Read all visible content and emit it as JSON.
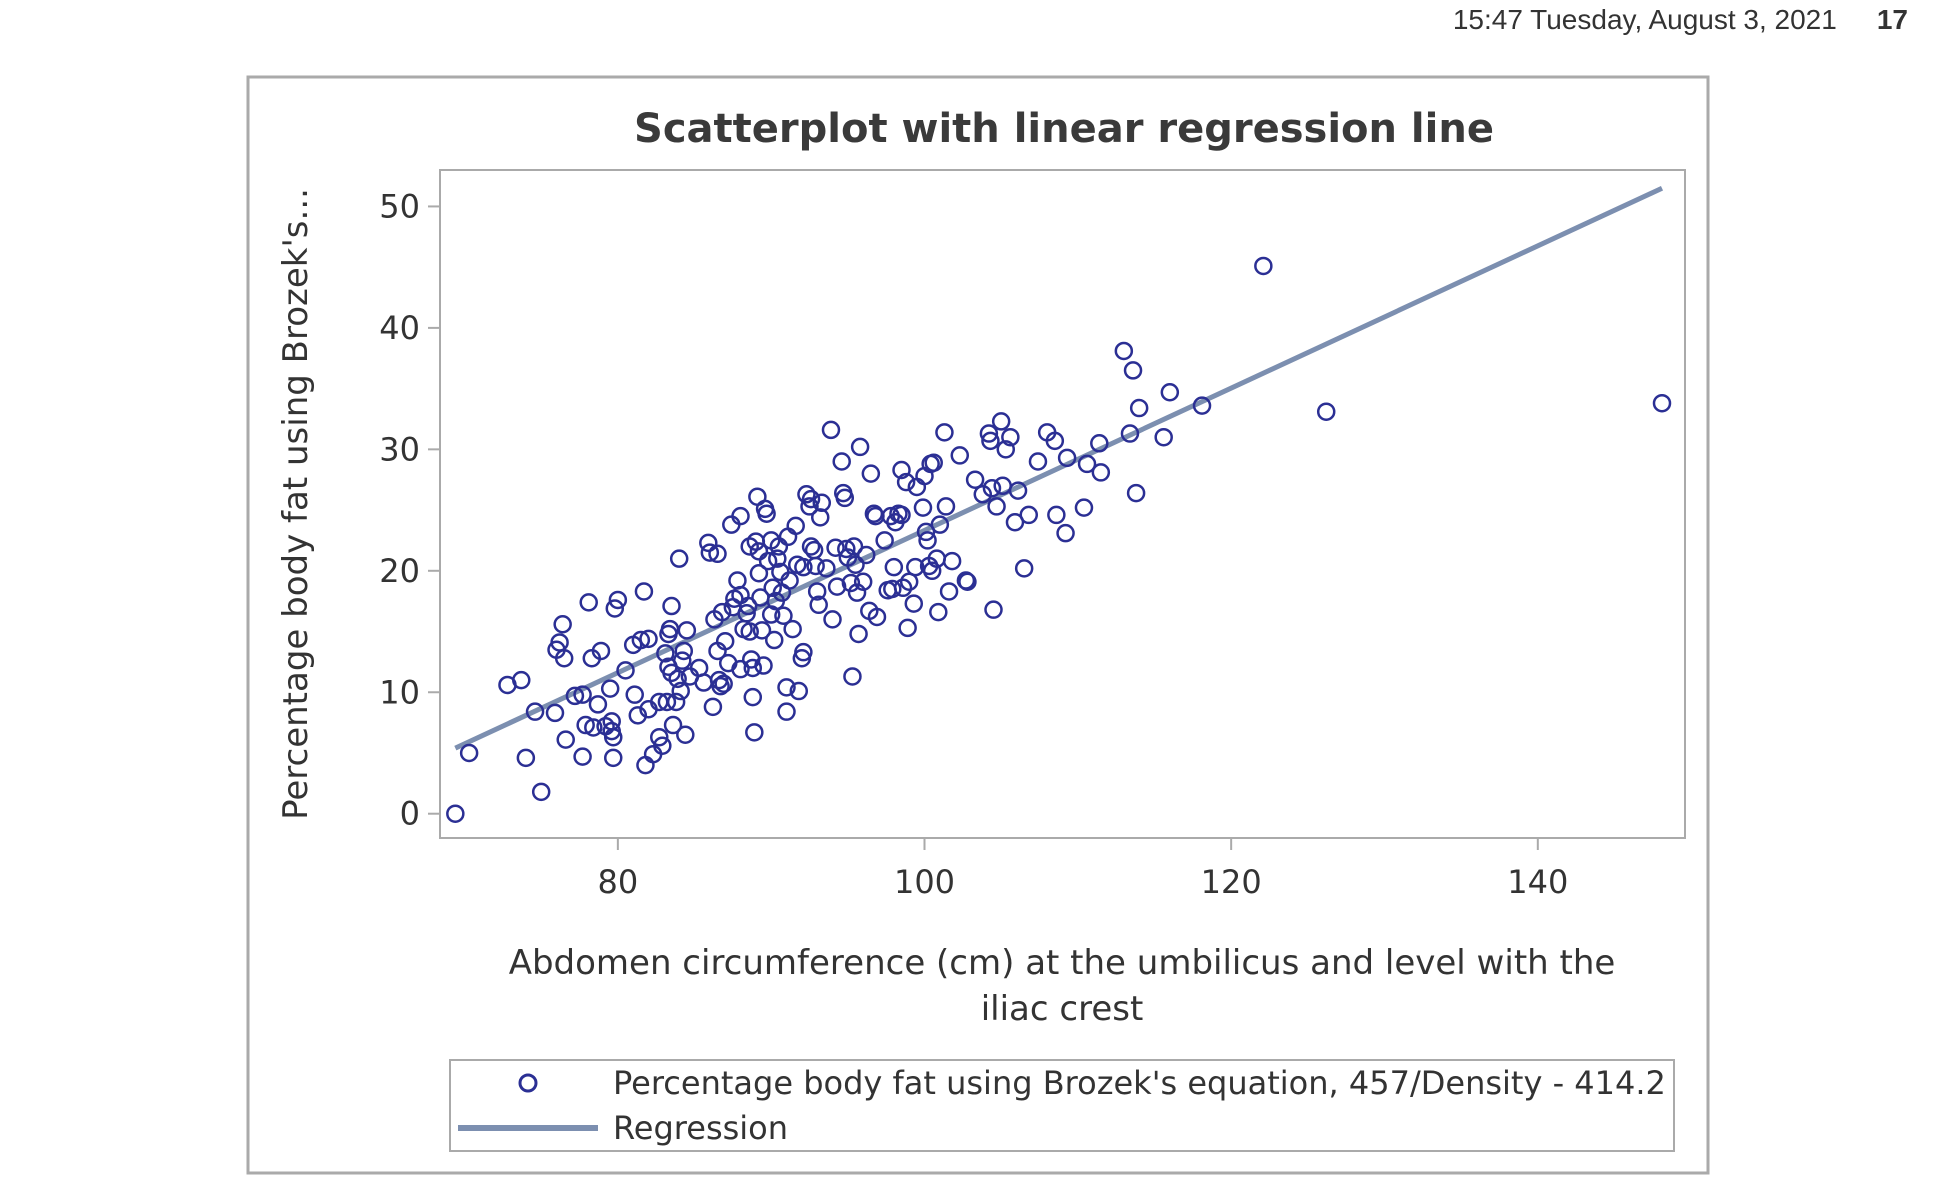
{
  "header": {
    "datetime": "15:47 Tuesday, August 3, 2021",
    "page_number": "17"
  },
  "colors": {
    "marker": "#2b2f94",
    "regression": "#7c8fb0",
    "frame": "#aaaaaa",
    "text": "#333333"
  },
  "chart_data": {
    "type": "scatter",
    "title": "Scatterplot with linear regression line",
    "xlabel_lines": [
      "Abdomen circumference (cm) at the umbilicus and level with the",
      "iliac crest"
    ],
    "ylabel": "Percentage body fat using Brozek's...",
    "xlim": [
      68.4,
      149.6
    ],
    "ylim": [
      -2,
      53
    ],
    "xticks": [
      80,
      100,
      120,
      140
    ],
    "yticks": [
      0,
      10,
      20,
      30,
      40,
      50
    ],
    "grid": false,
    "legend_position": "bottom",
    "legend": [
      {
        "label": "Percentage body fat using Brozek's equation, 457/Density - 414.2",
        "kind": "marker"
      },
      {
        "label": "Regression",
        "kind": "line"
      }
    ],
    "regression": {
      "x": [
        69.4,
        148.1
      ],
      "y": [
        5.4,
        51.5
      ]
    },
    "series": [
      {
        "name": "Percentage body fat using Brozek's equation, 457/Density - 414.2",
        "points": [
          [
            69.4,
            0.0
          ],
          [
            70.3,
            5.0
          ],
          [
            72.8,
            10.6
          ],
          [
            73.7,
            11.0
          ],
          [
            74.0,
            4.6
          ],
          [
            74.6,
            8.4
          ],
          [
            75.0,
            1.8
          ],
          [
            75.9,
            8.3
          ],
          [
            76.0,
            13.5
          ],
          [
            76.2,
            14.1
          ],
          [
            76.4,
            15.6
          ],
          [
            76.5,
            12.8
          ],
          [
            76.6,
            6.1
          ],
          [
            77.2,
            9.7
          ],
          [
            77.7,
            9.8
          ],
          [
            77.7,
            4.7
          ],
          [
            77.9,
            7.3
          ],
          [
            78.1,
            17.4
          ],
          [
            78.3,
            12.8
          ],
          [
            78.4,
            7.1
          ],
          [
            78.7,
            9.0
          ],
          [
            78.9,
            13.4
          ],
          [
            79.2,
            7.2
          ],
          [
            79.5,
            10.3
          ],
          [
            79.6,
            7.6
          ],
          [
            79.6,
            6.8
          ],
          [
            79.7,
            6.3
          ],
          [
            79.7,
            4.6
          ],
          [
            79.8,
            16.9
          ],
          [
            80.0,
            17.6
          ],
          [
            80.5,
            11.8
          ],
          [
            81.0,
            13.9
          ],
          [
            81.1,
            9.8
          ],
          [
            81.3,
            8.1
          ],
          [
            81.5,
            14.3
          ],
          [
            81.7,
            18.3
          ],
          [
            81.8,
            4.0
          ],
          [
            82.0,
            8.6
          ],
          [
            82.0,
            14.4
          ],
          [
            82.3,
            4.9
          ],
          [
            82.7,
            9.2
          ],
          [
            82.7,
            6.3
          ],
          [
            82.9,
            5.6
          ],
          [
            83.1,
            13.2
          ],
          [
            83.2,
            9.2
          ],
          [
            83.3,
            14.8
          ],
          [
            83.3,
            12.1
          ],
          [
            83.4,
            15.2
          ],
          [
            83.5,
            17.1
          ],
          [
            83.5,
            11.6
          ],
          [
            83.6,
            7.3
          ],
          [
            83.8,
            9.2
          ],
          [
            83.9,
            11.1
          ],
          [
            84.0,
            21.0
          ],
          [
            84.1,
            10.1
          ],
          [
            84.2,
            12.6
          ],
          [
            84.3,
            13.4
          ],
          [
            84.4,
            6.5
          ],
          [
            84.5,
            15.1
          ],
          [
            84.7,
            11.3
          ],
          [
            85.3,
            12.0
          ],
          [
            85.6,
            10.8
          ],
          [
            85.9,
            22.3
          ],
          [
            86.0,
            21.5
          ],
          [
            86.2,
            8.8
          ],
          [
            86.3,
            16.0
          ],
          [
            86.5,
            21.4
          ],
          [
            86.5,
            13.4
          ],
          [
            86.6,
            11.0
          ],
          [
            86.7,
            10.5
          ],
          [
            86.8,
            16.6
          ],
          [
            86.9,
            10.7
          ],
          [
            87.0,
            14.2
          ],
          [
            87.2,
            12.4
          ],
          [
            87.4,
            23.8
          ],
          [
            87.5,
            17.0
          ],
          [
            87.6,
            17.7
          ],
          [
            87.8,
            19.2
          ],
          [
            88.0,
            18.0
          ],
          [
            88.0,
            11.9
          ],
          [
            88.0,
            24.5
          ],
          [
            88.2,
            15.2
          ],
          [
            88.4,
            16.5
          ],
          [
            88.5,
            17.1
          ],
          [
            88.6,
            22.0
          ],
          [
            88.6,
            15.0
          ],
          [
            88.7,
            12.7
          ],
          [
            88.8,
            12.0
          ],
          [
            88.8,
            9.6
          ],
          [
            88.9,
            6.7
          ],
          [
            89.0,
            22.4
          ],
          [
            89.1,
            26.1
          ],
          [
            89.2,
            21.6
          ],
          [
            89.2,
            19.8
          ],
          [
            89.3,
            17.8
          ],
          [
            89.4,
            15.1
          ],
          [
            89.5,
            12.2
          ],
          [
            89.6,
            25.1
          ],
          [
            89.7,
            24.7
          ],
          [
            89.8,
            20.8
          ],
          [
            90.0,
            22.5
          ],
          [
            90.0,
            16.4
          ],
          [
            90.1,
            18.6
          ],
          [
            90.2,
            14.3
          ],
          [
            90.3,
            17.5
          ],
          [
            90.4,
            21.0
          ],
          [
            90.5,
            22.0
          ],
          [
            90.6,
            19.9
          ],
          [
            90.7,
            18.2
          ],
          [
            90.8,
            16.3
          ],
          [
            91.0,
            10.4
          ],
          [
            91.0,
            8.4
          ],
          [
            91.1,
            22.8
          ],
          [
            91.2,
            19.2
          ],
          [
            91.4,
            15.2
          ],
          [
            91.6,
            23.7
          ],
          [
            91.7,
            20.5
          ],
          [
            91.8,
            10.1
          ],
          [
            92.0,
            12.8
          ],
          [
            92.1,
            13.3
          ],
          [
            92.1,
            20.3
          ],
          [
            92.3,
            26.3
          ],
          [
            92.5,
            25.3
          ],
          [
            92.6,
            25.9
          ],
          [
            92.6,
            22.0
          ],
          [
            92.8,
            21.7
          ],
          [
            92.9,
            20.4
          ],
          [
            93.0,
            18.3
          ],
          [
            93.1,
            17.2
          ],
          [
            93.2,
            24.4
          ],
          [
            93.3,
            25.6
          ],
          [
            93.6,
            20.2
          ],
          [
            93.9,
            31.6
          ],
          [
            94.0,
            16.0
          ],
          [
            94.2,
            21.9
          ],
          [
            94.3,
            18.7
          ],
          [
            94.6,
            29.0
          ],
          [
            94.7,
            26.4
          ],
          [
            94.8,
            26.0
          ],
          [
            94.9,
            21.8
          ],
          [
            95.0,
            21.1
          ],
          [
            95.2,
            19.0
          ],
          [
            95.3,
            11.3
          ],
          [
            95.4,
            22.0
          ],
          [
            95.5,
            20.5
          ],
          [
            95.6,
            18.2
          ],
          [
            95.7,
            14.8
          ],
          [
            95.8,
            30.2
          ],
          [
            96.0,
            19.1
          ],
          [
            96.2,
            21.3
          ],
          [
            96.4,
            16.7
          ],
          [
            96.5,
            28.0
          ],
          [
            96.7,
            24.7
          ],
          [
            96.8,
            24.5
          ],
          [
            96.9,
            16.2
          ],
          [
            97.4,
            22.5
          ],
          [
            97.6,
            18.4
          ],
          [
            97.8,
            24.5
          ],
          [
            97.9,
            18.5
          ],
          [
            98.0,
            20.3
          ],
          [
            98.1,
            24.0
          ],
          [
            98.3,
            24.7
          ],
          [
            98.5,
            28.3
          ],
          [
            98.5,
            24.6
          ],
          [
            98.6,
            18.6
          ],
          [
            98.8,
            27.3
          ],
          [
            98.9,
            15.3
          ],
          [
            99.0,
            19.1
          ],
          [
            99.3,
            17.3
          ],
          [
            99.4,
            20.3
          ],
          [
            99.5,
            26.9
          ],
          [
            99.9,
            25.2
          ],
          [
            100.0,
            27.8
          ],
          [
            100.1,
            23.2
          ],
          [
            100.2,
            22.5
          ],
          [
            100.3,
            20.4
          ],
          [
            100.4,
            28.8
          ],
          [
            100.5,
            20.0
          ],
          [
            100.6,
            28.9
          ],
          [
            100.8,
            21.0
          ],
          [
            100.9,
            16.6
          ],
          [
            101.0,
            23.8
          ],
          [
            101.3,
            31.4
          ],
          [
            101.4,
            25.3
          ],
          [
            101.6,
            18.3
          ],
          [
            101.8,
            20.8
          ],
          [
            102.3,
            29.5
          ],
          [
            102.7,
            19.2
          ],
          [
            102.8,
            19.1
          ],
          [
            103.3,
            27.5
          ],
          [
            103.8,
            26.3
          ],
          [
            104.2,
            31.3
          ],
          [
            104.3,
            30.7
          ],
          [
            104.4,
            26.8
          ],
          [
            104.5,
            16.8
          ],
          [
            104.7,
            25.3
          ],
          [
            105.0,
            32.3
          ],
          [
            105.1,
            27.0
          ],
          [
            105.3,
            30.0
          ],
          [
            105.6,
            31.0
          ],
          [
            105.9,
            24.0
          ],
          [
            106.1,
            26.6
          ],
          [
            106.5,
            20.2
          ],
          [
            106.8,
            24.6
          ],
          [
            107.4,
            29.0
          ],
          [
            108.0,
            31.4
          ],
          [
            108.5,
            30.7
          ],
          [
            108.6,
            24.6
          ],
          [
            109.2,
            23.1
          ],
          [
            109.3,
            29.3
          ],
          [
            110.4,
            25.2
          ],
          [
            110.6,
            28.8
          ],
          [
            111.4,
            30.5
          ],
          [
            111.5,
            28.1
          ],
          [
            113.0,
            38.1
          ],
          [
            113.4,
            31.3
          ],
          [
            113.6,
            36.5
          ],
          [
            113.8,
            26.4
          ],
          [
            114.0,
            33.4
          ],
          [
            115.6,
            31.0
          ],
          [
            116.0,
            34.7
          ],
          [
            118.1,
            33.6
          ],
          [
            122.1,
            45.1
          ],
          [
            126.2,
            33.1
          ],
          [
            148.1,
            33.8
          ]
        ]
      }
    ]
  }
}
